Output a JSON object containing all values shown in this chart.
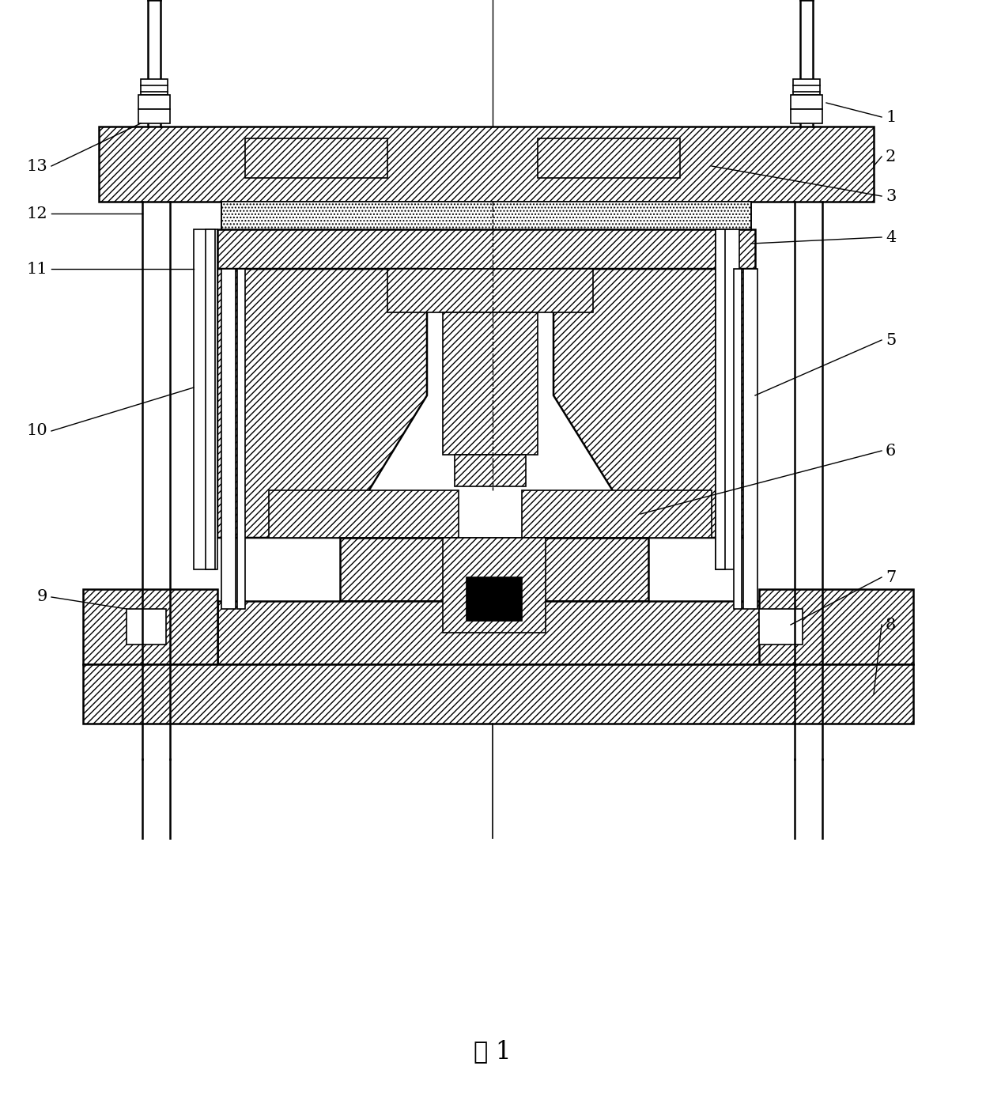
{
  "title": "图 1",
  "background": "#ffffff",
  "fig_width": 12.47,
  "fig_height": 14.15,
  "lw": 1.2,
  "lw2": 1.8
}
